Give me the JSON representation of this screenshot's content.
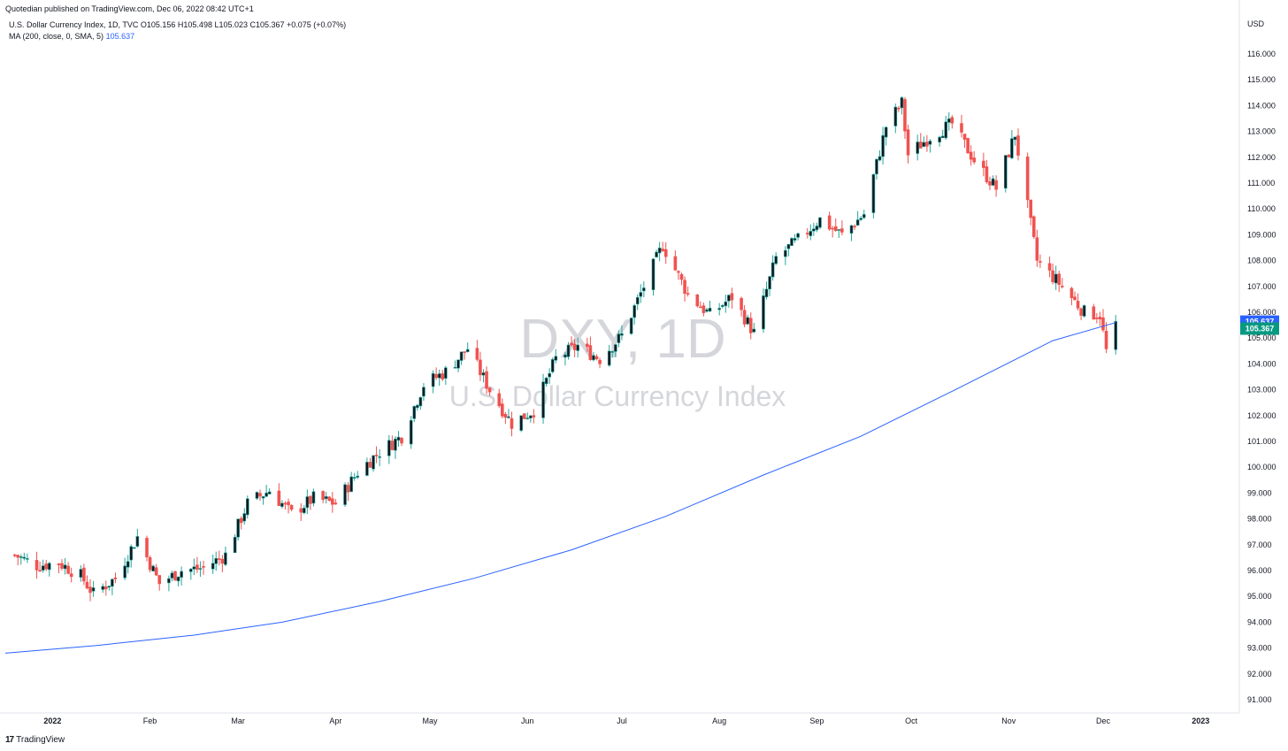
{
  "header": {
    "published": "Quotedian published on TradingView.com, Dec 06, 2022 08:42 UTC+1",
    "symbol_line": "U.S. Dollar Currency Index, 1D, TVC  O105.156  H105.498  L105.023  C105.367  +0.075 (+0.07%)",
    "ma_label": "MA (200, close, 0, SMA, 5)",
    "ma_value": "105.637"
  },
  "watermark": {
    "symbol": "DXY, 1D",
    "name": "U.S. Dollar Currency Index"
  },
  "footer": {
    "brand": "TradingView",
    "logo_glyph": "17"
  },
  "colors": {
    "up": "#26a69a",
    "down": "#ef5350",
    "ma": "#2962ff",
    "body_dark": "#131722",
    "grid": "#ffffff",
    "axis_text": "#131722",
    "ma_badge": "#2962ff",
    "price_badge": "#089981"
  },
  "chart_data": {
    "type": "candlestick",
    "title": "DXY, 1D",
    "currency": "USD",
    "ylim": [
      90.5,
      116.8
    ],
    "y_ticks": [
      "91.000",
      "92.000",
      "93.000",
      "94.000",
      "95.000",
      "96.000",
      "97.000",
      "98.000",
      "99.000",
      "100.000",
      "101.000",
      "102.000",
      "103.000",
      "104.000",
      "105.000",
      "106.000",
      "107.000",
      "108.000",
      "109.000",
      "110.000",
      "111.000",
      "112.000",
      "113.000",
      "114.000",
      "115.000",
      "116.000"
    ],
    "x_ticks": [
      "2022",
      "Feb",
      "Mar",
      "Apr",
      "May",
      "Jun",
      "Jul",
      "Aug",
      "Sep",
      "Oct",
      "Nov",
      "Dec",
      "2023"
    ],
    "last_price": "105.367",
    "ma_last": "105.637",
    "close_series": {
      "name": "U.S. Dollar Currency Index",
      "points": [
        [
          "2021-12-20",
          96.6
        ],
        [
          "2021-12-27",
          96.2
        ],
        [
          "2022-01-03",
          96.3
        ],
        [
          "2022-01-10",
          95.8
        ],
        [
          "2022-01-14",
          95.1
        ],
        [
          "2022-01-21",
          95.7
        ],
        [
          "2022-01-28",
          97.3
        ],
        [
          "2022-02-04",
          95.5
        ],
        [
          "2022-02-11",
          96.0
        ],
        [
          "2022-02-18",
          96.1
        ],
        [
          "2022-02-25",
          96.6
        ],
        [
          "2022-03-04",
          98.6
        ],
        [
          "2022-03-11",
          99.1
        ],
        [
          "2022-03-18",
          98.2
        ],
        [
          "2022-03-25",
          98.8
        ],
        [
          "2022-04-01",
          98.6
        ],
        [
          "2022-04-08",
          99.8
        ],
        [
          "2022-04-14",
          100.5
        ],
        [
          "2022-04-22",
          101.2
        ],
        [
          "2022-04-29",
          103.2
        ],
        [
          "2022-05-06",
          103.7
        ],
        [
          "2022-05-13",
          104.6
        ],
        [
          "2022-05-20",
          103.0
        ],
        [
          "2022-05-27",
          101.7
        ],
        [
          "2022-06-03",
          102.2
        ],
        [
          "2022-06-10",
          104.2
        ],
        [
          "2022-06-17",
          104.7
        ],
        [
          "2022-06-24",
          104.2
        ],
        [
          "2022-07-01",
          105.1
        ],
        [
          "2022-07-08",
          107.0
        ],
        [
          "2022-07-14",
          108.6
        ],
        [
          "2022-07-22",
          106.7
        ],
        [
          "2022-07-29",
          105.9
        ],
        [
          "2022-08-05",
          106.6
        ],
        [
          "2022-08-12",
          105.2
        ],
        [
          "2022-08-19",
          108.1
        ],
        [
          "2022-08-26",
          108.8
        ],
        [
          "2022-09-02",
          109.6
        ],
        [
          "2022-09-09",
          109.0
        ],
        [
          "2022-09-16",
          109.8
        ],
        [
          "2022-09-23",
          113.2
        ],
        [
          "2022-09-28",
          114.1
        ],
        [
          "2022-09-30",
          112.1
        ],
        [
          "2022-10-07",
          112.8
        ],
        [
          "2022-10-14",
          113.3
        ],
        [
          "2022-10-21",
          111.9
        ],
        [
          "2022-10-28",
          110.8
        ],
        [
          "2022-11-03",
          112.9
        ],
        [
          "2022-11-10",
          108.0
        ],
        [
          "2022-11-18",
          107.0
        ],
        [
          "2022-11-25",
          106.0
        ],
        [
          "2022-11-30",
          105.9
        ],
        [
          "2022-12-02",
          104.5
        ],
        [
          "2022-12-05",
          105.4
        ]
      ]
    },
    "ma_series": {
      "name": "MA (200, close, 0, SMA, 5)",
      "points": [
        [
          "2021-12-17",
          92.8
        ],
        [
          "2022-01-15",
          93.1
        ],
        [
          "2022-02-15",
          93.5
        ],
        [
          "2022-03-15",
          94.0
        ],
        [
          "2022-04-15",
          94.8
        ],
        [
          "2022-05-15",
          95.7
        ],
        [
          "2022-06-15",
          96.8
        ],
        [
          "2022-07-15",
          98.1
        ],
        [
          "2022-08-15",
          99.7
        ],
        [
          "2022-09-15",
          101.2
        ],
        [
          "2022-10-15",
          103.0
        ],
        [
          "2022-11-15",
          104.9
        ],
        [
          "2022-12-05",
          105.6
        ]
      ]
    }
  }
}
